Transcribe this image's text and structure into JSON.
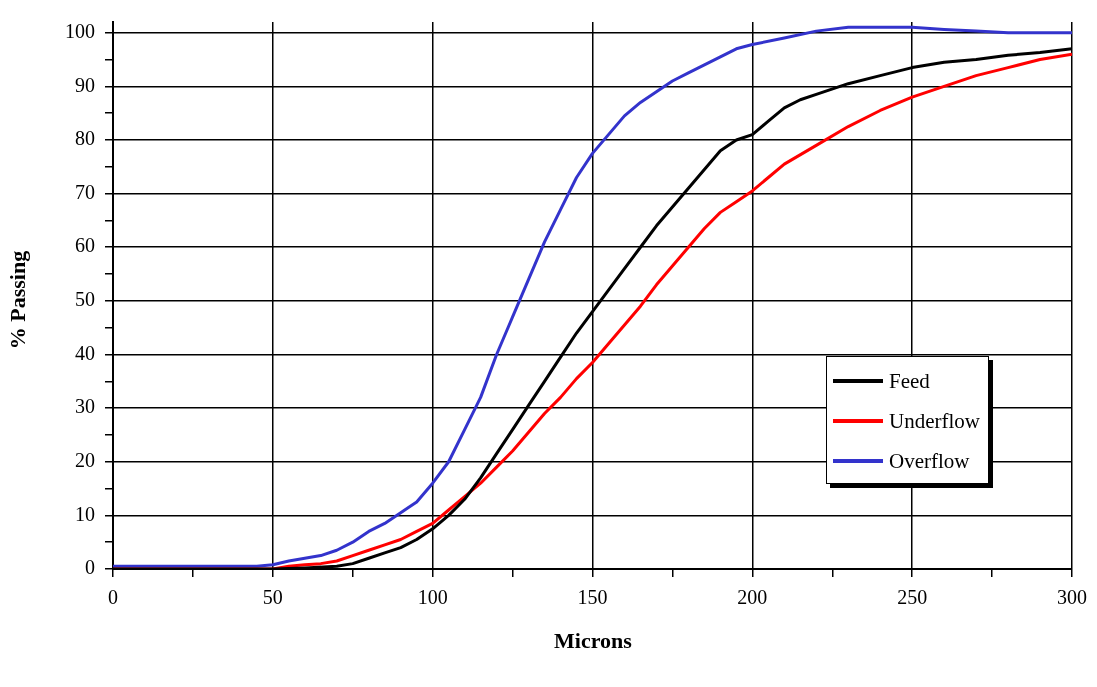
{
  "chart_data": {
    "type": "line",
    "xlabel": "Microns",
    "ylabel": "% Passing",
    "xlim": [
      0,
      300
    ],
    "ylim": [
      0,
      102
    ],
    "xticks": [
      0,
      {
        "value": 25,
        "label": null
      },
      50,
      {
        "value": 75,
        "label": null
      },
      100,
      {
        "value": 125,
        "label": null
      },
      150,
      {
        "value": 175,
        "label": null
      },
      200,
      {
        "value": 225,
        "label": null
      },
      250,
      {
        "value": 275,
        "label": null
      },
      300
    ],
    "yticks": [
      0,
      {
        "value": 5,
        "label": null
      },
      10,
      {
        "value": 15,
        "label": null
      },
      20,
      {
        "value": 25,
        "label": null
      },
      30,
      {
        "value": 35,
        "label": null
      },
      40,
      {
        "value": 45,
        "label": null
      },
      50,
      {
        "value": 55,
        "label": null
      },
      60,
      {
        "value": 65,
        "label": null
      },
      70,
      {
        "value": 75,
        "label": null
      },
      80,
      {
        "value": 85,
        "label": null
      },
      90,
      {
        "value": 95,
        "label": null
      },
      100
    ],
    "grid": true,
    "legend": "bottom right",
    "marker": "none",
    "line_style": "solid",
    "series": [
      {
        "name": "Feed",
        "color": "#000000",
        "x": [
          0,
          50,
          60,
          70,
          75,
          80,
          85,
          90,
          95,
          100,
          105,
          110,
          115,
          120,
          125,
          130,
          135,
          140,
          145,
          150,
          155,
          160,
          165,
          170,
          175,
          180,
          185,
          190,
          195,
          200,
          205,
          210,
          215,
          220,
          230,
          240,
          250,
          260,
          270,
          280,
          290,
          300
        ],
        "values": [
          0,
          0,
          0.2,
          0.5,
          1,
          2,
          3,
          4,
          5.5,
          7.5,
          10,
          13,
          17,
          21.5,
          26,
          30.5,
          35,
          39.5,
          44,
          48,
          52,
          56,
          60,
          64,
          67.5,
          71,
          74.5,
          78,
          80,
          81,
          83.5,
          86,
          87.5,
          88.5,
          90.5,
          92,
          93.5,
          94.5,
          95,
          95.8,
          96.3,
          97
        ]
      },
      {
        "name": "Underflow",
        "color": "#ff0000",
        "x": [
          0,
          50,
          55,
          60,
          65,
          70,
          75,
          80,
          85,
          90,
          95,
          100,
          105,
          110,
          115,
          120,
          125,
          130,
          135,
          140,
          145,
          150,
          155,
          160,
          165,
          170,
          175,
          180,
          185,
          190,
          195,
          200,
          205,
          210,
          220,
          230,
          240,
          250,
          260,
          270,
          280,
          290,
          300
        ],
        "values": [
          0,
          0,
          0.5,
          0.8,
          1,
          1.5,
          2.5,
          3.5,
          4.5,
          5.5,
          7,
          8.5,
          11,
          13.5,
          16,
          19,
          22,
          25.5,
          29,
          32,
          35.5,
          38.5,
          42,
          45.5,
          49,
          53,
          56.5,
          60,
          63.5,
          66.5,
          68.5,
          70.5,
          73,
          75.5,
          79,
          82.5,
          85.5,
          88,
          90,
          92,
          93.5,
          95,
          96
        ]
      },
      {
        "name": "Overflow",
        "color": "#3333cc",
        "x": [
          0,
          45,
          50,
          55,
          60,
          65,
          70,
          75,
          80,
          85,
          90,
          95,
          100,
          105,
          110,
          115,
          120,
          125,
          130,
          135,
          140,
          145,
          150,
          155,
          160,
          165,
          170,
          175,
          180,
          185,
          190,
          195,
          200,
          210,
          220,
          230,
          250,
          260,
          270,
          280,
          300
        ],
        "values": [
          0.5,
          0.5,
          0.8,
          1.5,
          2,
          2.5,
          3.5,
          5,
          7,
          8.5,
          10.5,
          12.5,
          16,
          20,
          26,
          32,
          40,
          47,
          54,
          61,
          67,
          73,
          77.5,
          81,
          84.5,
          87,
          89,
          91,
          92.5,
          94,
          95.5,
          97,
          97.8,
          99,
          100.3,
          101,
          101,
          100.6,
          100.3,
          100,
          100
        ]
      }
    ]
  }
}
